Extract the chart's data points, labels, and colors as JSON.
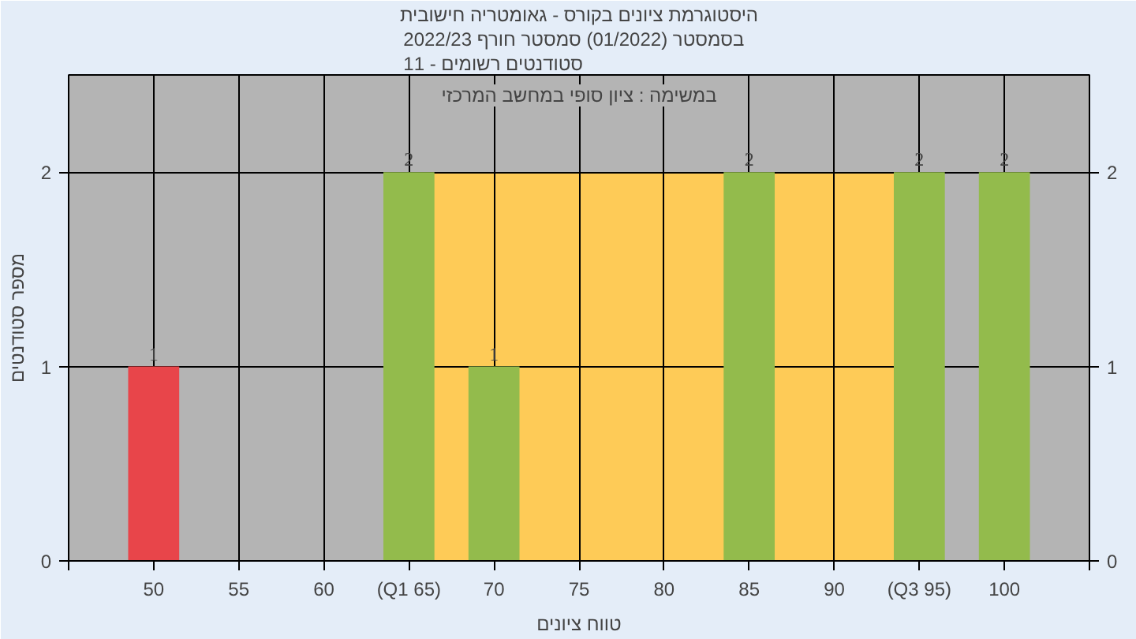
{
  "chart_data": {
    "type": "bar",
    "title": "היסטוגרמת ציונים בקורס - גאומטריה חישובית",
    "subtitle": "בסמסטר  (01/2022)  סמסטר חורף 2022/23\nסטודנטים רשומים - 11",
    "xlabel": "טווח ציונים",
    "ylabel": "מספר סטודנטים",
    "annotations": [
      "במשימה : ציון סופי במחשב המרכזי"
    ],
    "x": [
      50,
      65,
      70,
      85,
      95,
      100
    ],
    "values": [
      1,
      2,
      1,
      2,
      2,
      2
    ],
    "colors": [
      "#e8454a",
      "#93bb4c",
      "#93bb4c",
      "#93bb4c",
      "#93bb4c",
      "#93bb4c"
    ],
    "data_labels": true,
    "xlim": [
      45,
      105
    ],
    "xticks": [
      {
        "value": 45,
        "label": null
      },
      50,
      55,
      60,
      {
        "value": 65,
        "label": "(Q1 65)"
      },
      70,
      75,
      80,
      85,
      90,
      {
        "value": 95,
        "label": "(Q3 95)"
      },
      100,
      {
        "value": 105,
        "label": null
      }
    ],
    "ylim": [
      0,
      2.5
    ],
    "yticks": [
      0,
      1,
      2
    ],
    "y2lim": [
      0,
      2.5
    ],
    "y2ticks": [
      0,
      1,
      2
    ],
    "bands": [
      {
        "axis": "x",
        "from": 65,
        "to": 95,
        "color": "#fecb57"
      }
    ],
    "grid": true
  }
}
